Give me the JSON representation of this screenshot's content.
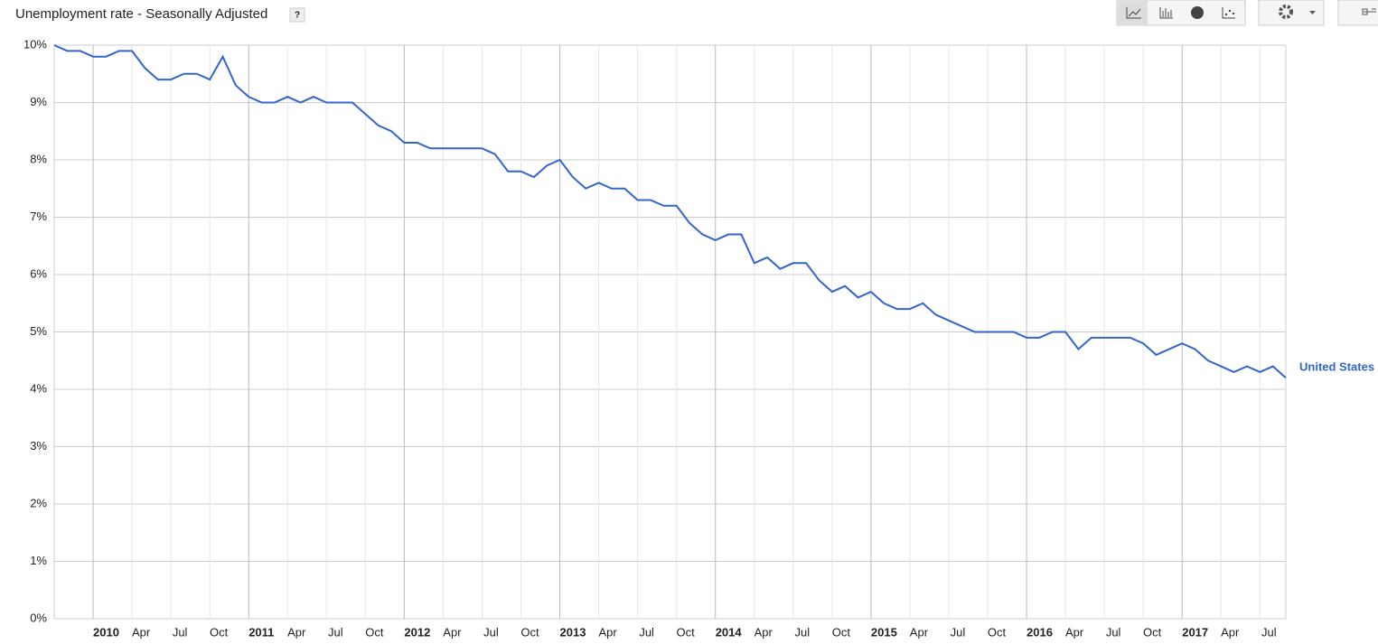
{
  "chart_data": {
    "type": "line",
    "title": "Unemployment rate - Seasonally Adjusted",
    "help_icon": "?",
    "categories": [
      null,
      null,
      null,
      "2010",
      null,
      null,
      "Apr",
      null,
      null,
      "Jul",
      null,
      null,
      "Oct",
      null,
      null,
      "2011",
      null,
      null,
      "Apr",
      null,
      null,
      "Jul",
      null,
      null,
      "Oct",
      null,
      null,
      "2012",
      null,
      null,
      "Apr",
      null,
      null,
      "Jul",
      null,
      null,
      "Oct",
      null,
      null,
      "2013",
      null,
      null,
      "Apr",
      null,
      null,
      "Jul",
      null,
      null,
      "Oct",
      null,
      null,
      "2014",
      null,
      null,
      "Apr",
      null,
      null,
      "Jul",
      null,
      null,
      "Oct",
      null,
      null,
      "2015",
      null,
      null,
      "Apr",
      null,
      null,
      "Jul",
      null,
      null,
      "Oct",
      null,
      null,
      "2016",
      null,
      null,
      "Apr",
      null,
      null,
      "Jul",
      null,
      null,
      "Oct",
      null,
      null,
      "2017",
      null,
      null,
      "Apr",
      null,
      null,
      "Jul",
      null,
      null
    ],
    "series": [
      {
        "name": "United States",
        "color": "#3366cc",
        "values": [
          10.0,
          9.9,
          9.9,
          9.8,
          9.8,
          9.9,
          9.9,
          9.6,
          9.4,
          9.4,
          9.5,
          9.5,
          9.4,
          9.8,
          9.3,
          9.1,
          9.0,
          9.0,
          9.1,
          9.0,
          9.1,
          9.0,
          9.0,
          9.0,
          8.8,
          8.6,
          8.5,
          8.3,
          8.3,
          8.2,
          8.2,
          8.2,
          8.2,
          8.2,
          8.1,
          7.8,
          7.8,
          7.7,
          7.9,
          8.0,
          7.7,
          7.5,
          7.6,
          7.5,
          7.5,
          7.3,
          7.3,
          7.2,
          7.2,
          6.9,
          6.7,
          6.6,
          6.7,
          6.7,
          6.2,
          6.3,
          6.1,
          6.2,
          6.2,
          5.9,
          5.7,
          5.8,
          5.6,
          5.7,
          5.5,
          5.4,
          5.4,
          5.5,
          5.3,
          5.2,
          5.1,
          5.0,
          5.0,
          5.0,
          5.0,
          4.9,
          4.9,
          5.0,
          5.0,
          4.7,
          4.9,
          4.9,
          4.9,
          4.9,
          4.8,
          4.6,
          4.7,
          4.8,
          4.7,
          4.5,
          4.4,
          4.3,
          4.4,
          4.3,
          4.4,
          4.2
        ]
      }
    ],
    "ylim": [
      0,
      10
    ],
    "yticks": [
      {
        "value": 0,
        "label": "0%"
      },
      {
        "value": 1,
        "label": "1%"
      },
      {
        "value": 2,
        "label": "2%"
      },
      {
        "value": 3,
        "label": "3%"
      },
      {
        "value": 4,
        "label": "4%"
      },
      {
        "value": 5,
        "label": "5%"
      },
      {
        "value": 6,
        "label": "6%"
      },
      {
        "value": 7,
        "label": "7%"
      },
      {
        "value": 8,
        "label": "8%"
      },
      {
        "value": 9,
        "label": "9%"
      },
      {
        "value": 10,
        "label": "10%"
      }
    ],
    "grid": true
  }
}
